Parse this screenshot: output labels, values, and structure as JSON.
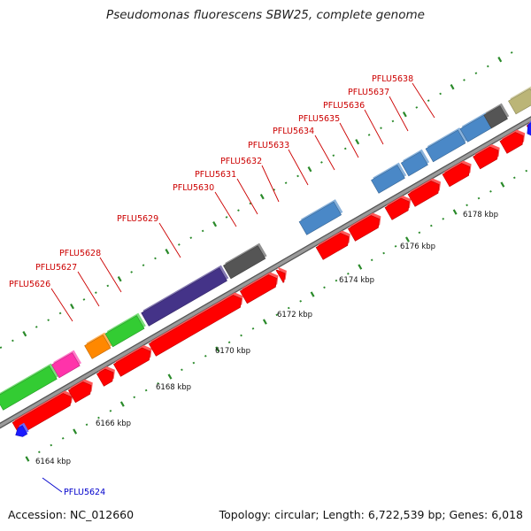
{
  "title": "Pseudomonas fluorescens SBW25, complete genome",
  "footer": {
    "accession": "Accession: NC_012660",
    "summary": "Topology: circular; Length: 6,722,539 bp; Genes: 6,018"
  },
  "colors": {
    "backbone": "#9a9a9a",
    "backbone_edge": "#555555",
    "tick": "#2a8a2a",
    "label_red": "#cc0000",
    "label_blue": "#0000cc",
    "leader": "#cc0000"
  },
  "kbp_labels": [
    "6164 kbp",
    "6166 kbp",
    "6168 kbp",
    "6170 kbp",
    "6172 kbp",
    "6174 kbp",
    "6176 kbp",
    "6178 kbp"
  ],
  "genes": [
    {
      "id": "PFLU5624",
      "strand": "minus",
      "color": "#1a1aff"
    },
    {
      "id": "PFLU5626",
      "strand": "plus",
      "color": "#33cc33"
    },
    {
      "id": "PFLU5627",
      "strand": "plus",
      "color": "#ff33aa"
    },
    {
      "id": "PFLU5628",
      "strand": "plus",
      "color": "#ff8800"
    },
    {
      "id": "PFLU5629",
      "strand": "plus",
      "color": "#33cc33"
    },
    {
      "id": "PFLU5630",
      "strand": "plus",
      "color": "#443388"
    },
    {
      "id": "PFLU5631",
      "strand": "plus",
      "color": "#555555"
    },
    {
      "id": "PFLU5632",
      "strand": "plus",
      "color": "#4a88c7"
    },
    {
      "id": "PFLU5633",
      "strand": "plus",
      "color": "#4a88c7"
    },
    {
      "id": "PFLU5634",
      "strand": "plus",
      "color": "#4a88c7"
    },
    {
      "id": "PFLU5635",
      "strand": "plus",
      "color": "#4a88c7"
    },
    {
      "id": "PFLU5636",
      "strand": "plus",
      "color": "#4a88c7"
    },
    {
      "id": "PFLU5637",
      "strand": "plus",
      "color": "#555555"
    },
    {
      "id": "PFLU5638",
      "strand": "plus",
      "color": "#bbb577"
    }
  ]
}
